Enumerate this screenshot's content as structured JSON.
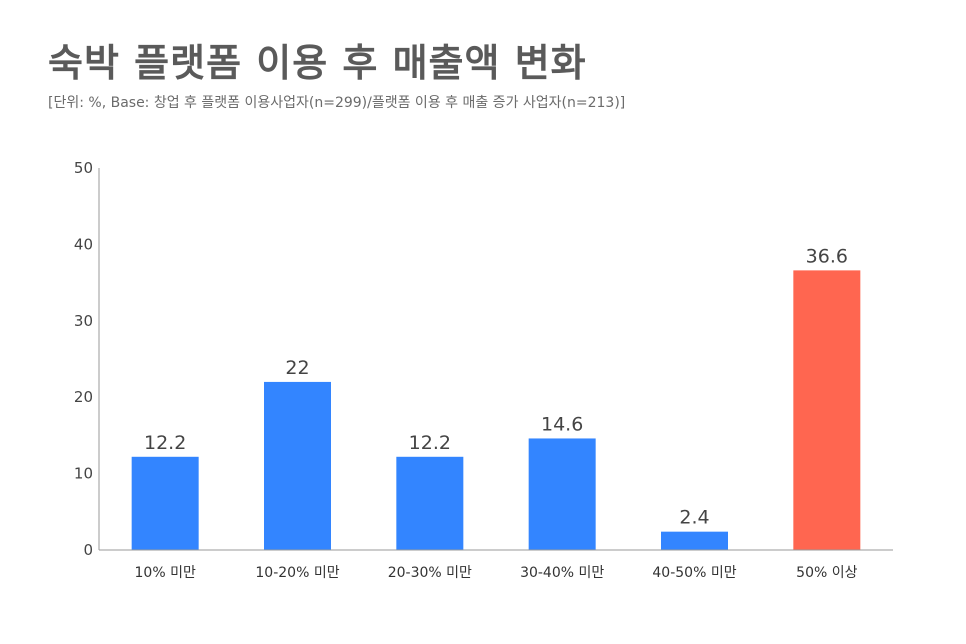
{
  "title": "숙박 플랫폼 이용 후 매출액 변화",
  "subtitle": "[단위: %, Base: 창업 후 플랫폼 이용사업자(n=299)/플랫폼 이용 후 매출 증가 사업자(n=213)]",
  "colors": {
    "primary": "#3385ff",
    "highlight": "#ff6650",
    "axis": "#9a9a9a"
  },
  "chart_data": {
    "type": "bar",
    "categories": [
      "10% 미만",
      "10-20% 미만",
      "20-30% 미만",
      "30-40% 미만",
      "40-50% 미만",
      "50% 이상"
    ],
    "values": [
      12.2,
      22,
      12.2,
      14.6,
      2.4,
      36.6
    ],
    "value_labels": [
      "12.2",
      "22",
      "12.2",
      "14.6",
      "2.4",
      "36.6"
    ],
    "highlight_index": 5,
    "ylim": [
      0,
      50
    ],
    "yticks": [
      0,
      10,
      20,
      30,
      40,
      50
    ],
    "xlabel": "",
    "ylabel": "",
    "grid": false
  }
}
